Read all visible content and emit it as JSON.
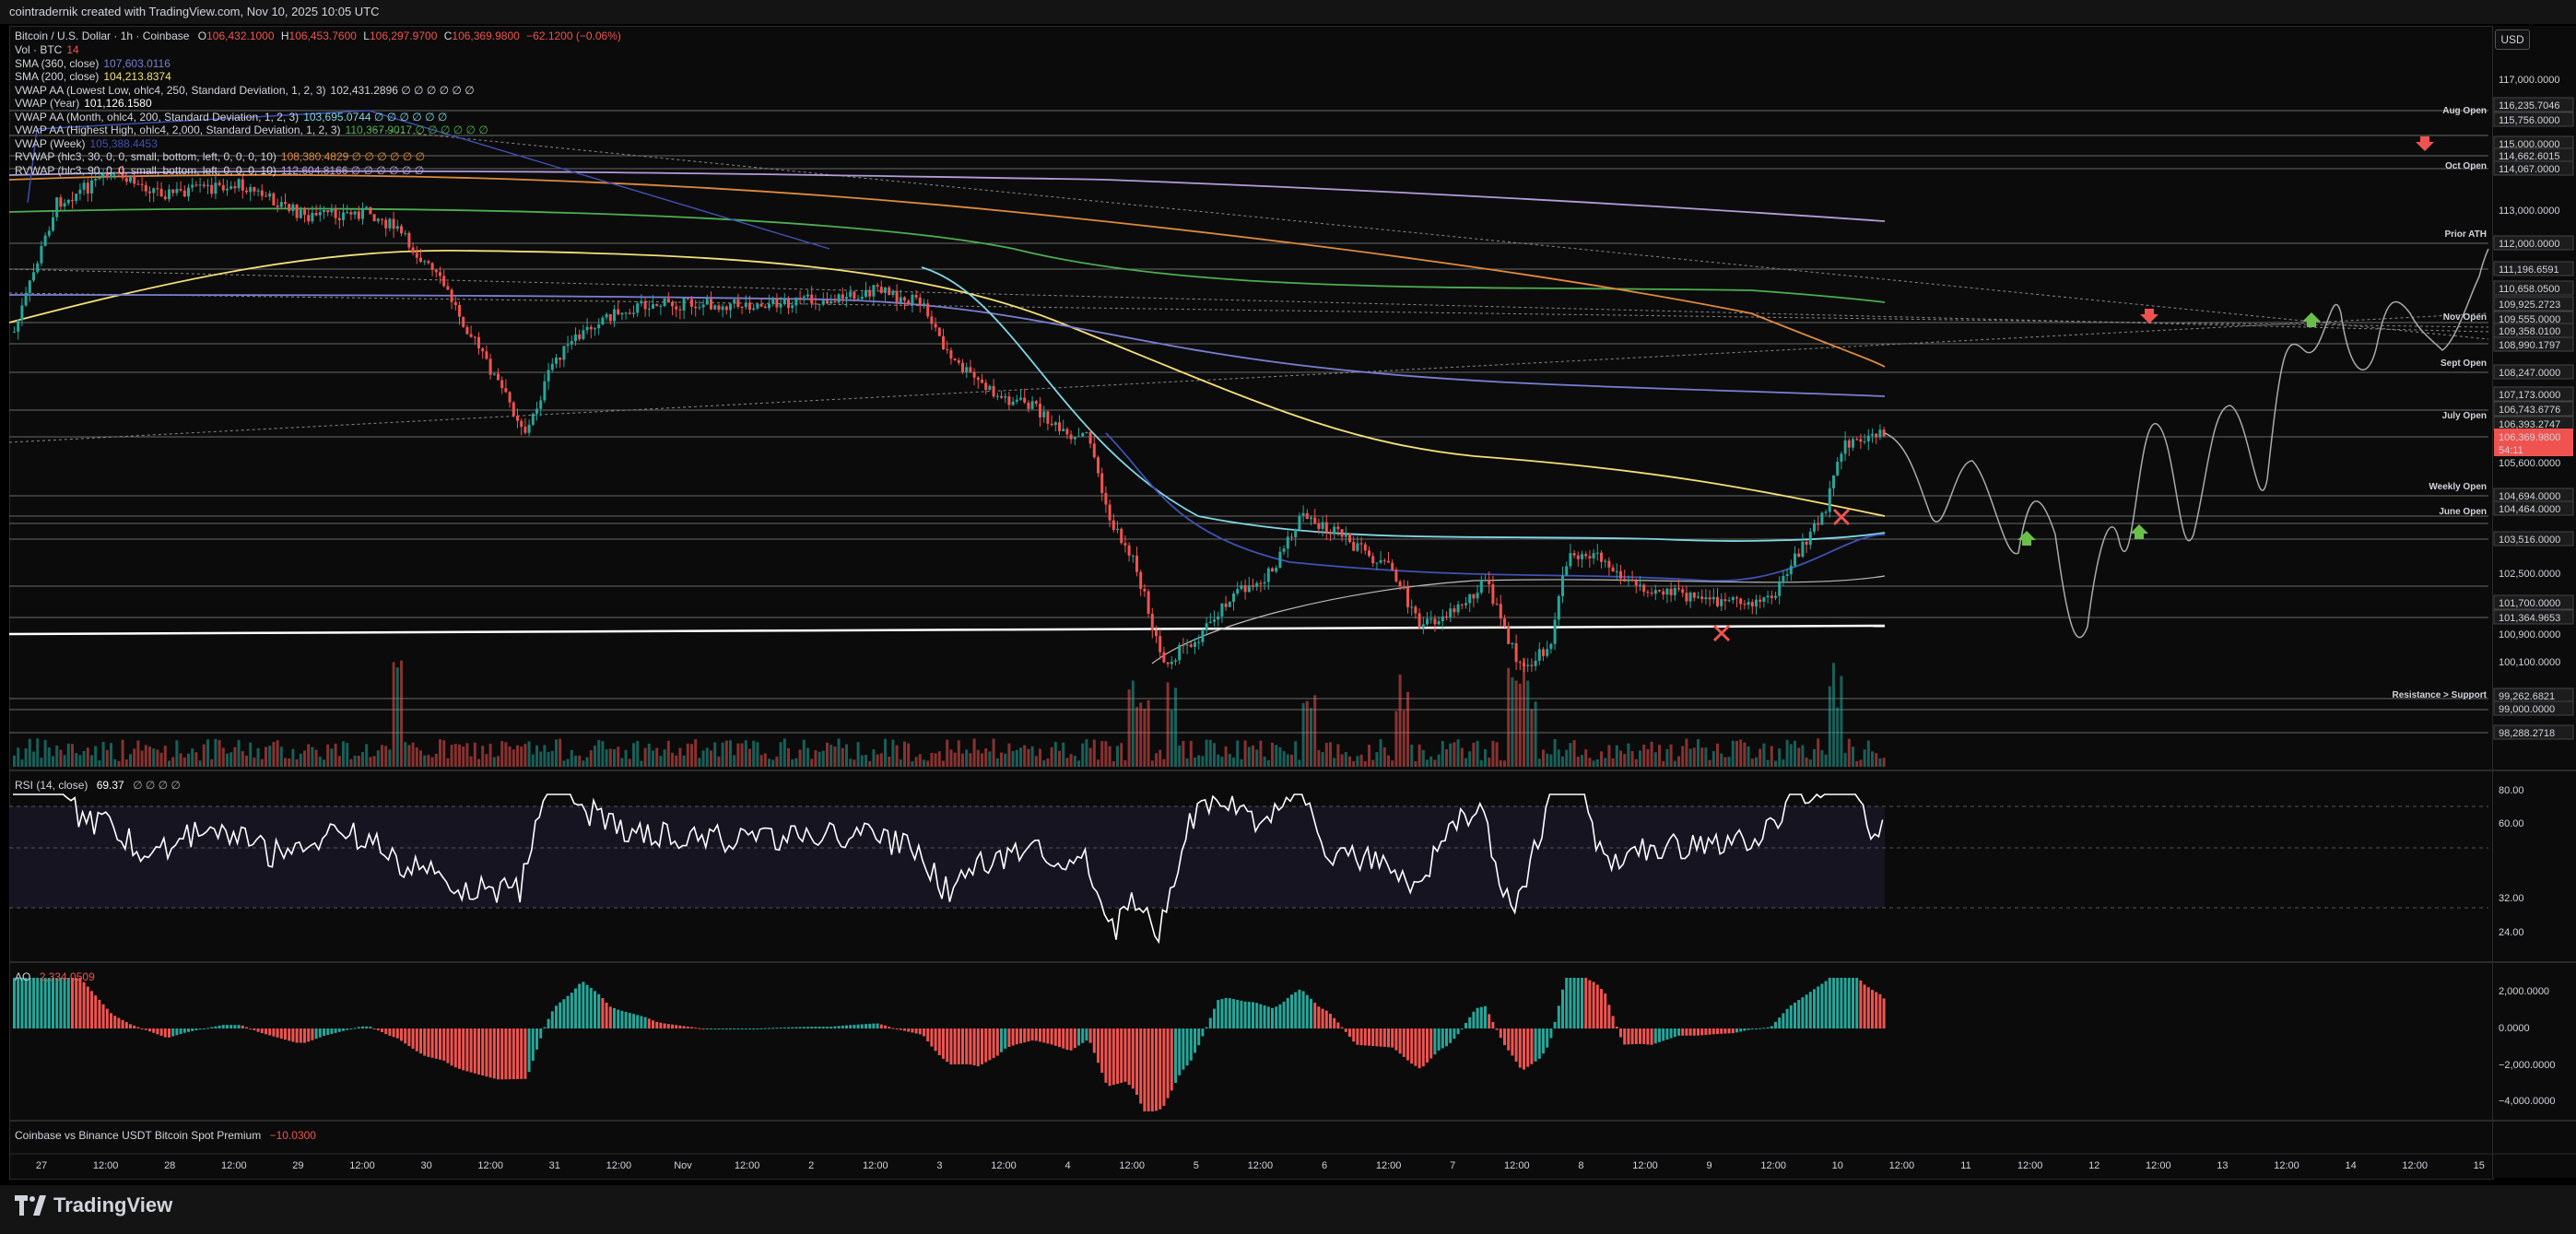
{
  "header": {
    "text": "cointradernik created with TradingView.com, Nov 10, 2025 10:05 UTC"
  },
  "currency_button": "USD",
  "symbol_legend": {
    "name": "Bitcoin / U.S. Dollar · 1h · Coinbase",
    "o_label": "O",
    "o": "106,432.1000",
    "h_label": "H",
    "h": "106,453.7600",
    "l_label": "L",
    "l": "106,297.9700",
    "c_label": "C",
    "c": "106,369.9800",
    "change": "−62.1200 (−0.06%)"
  },
  "indicator_legends": [
    {
      "label": "Vol · BTC",
      "value": "14",
      "color": "#ef5350"
    },
    {
      "label": "SMA (360, close)",
      "value": "107,603.0116",
      "color": "#7b7fd4"
    },
    {
      "label": "SMA (200, close)",
      "value": "104,213.8374",
      "color": "#f5e076"
    },
    {
      "label": "VWAP AA (Lowest Low, ohlc4, 250, Standard Deviation, 1, 2, 3)",
      "value": "102,431.2896  ∅ ∅ ∅ ∅ ∅ ∅",
      "color": "#d1d4dc"
    },
    {
      "label": "VWAP (Year)",
      "value": "101,126.1580",
      "color": "#ffffff"
    },
    {
      "label": "VWAP AA (Month, ohlc4, 200, Standard Deviation, 1, 2, 3)",
      "value": "103,695.0744  ∅ ∅ ∅ ∅ ∅ ∅",
      "color": "#7fd8e6"
    },
    {
      "label": "VWAP AA (Highest High, ohlc4, 2,000, Standard Deviation, 1, 2, 3)",
      "value": "110,367.9017  ∅ ∅ ∅ ∅ ∅ ∅",
      "color": "#4caf50"
    },
    {
      "label": "VWAP (Week)",
      "value": "105,388.4453",
      "color": "#3f51b5"
    },
    {
      "label": "RVWAP (hlc3, 30, 0, 0, small, bottom, left, 0, 0, 0, 10)",
      "value": "108,380.4829  ∅ ∅ ∅ ∅ ∅ ∅",
      "color": "#e08a3c"
    },
    {
      "label": "RVWAP (hlc3, 90, 0, 0, small, bottom, left, 0, 0, 0, 10)",
      "value": "112,604.8166  ∅ ∅ ∅ ∅ ∅ ∅",
      "color": "#b39ddb"
    }
  ],
  "level_labels": [
    "Aug Open",
    "Oct Open",
    "Prior ATH",
    "Nov Open",
    "Sept Open",
    "July Open",
    "Weekly Open",
    "June Open",
    "Resistance > Support"
  ],
  "price_axis": [
    "117,000.0000",
    "116,235.7046",
    "115,756.0000",
    "115,000.0000",
    "114,662.6015",
    "114,067.0000",
    "113,000.0000",
    "112,000.0000",
    "111,196.6591",
    "110,658.0500",
    "109,925.2723",
    "109,555.0000",
    "109,358.0100",
    "108,990.1797",
    "108,247.0000",
    "107,173.0000",
    "106,743.6776",
    "106,393.2747",
    "106,369.9800",
    "54:11",
    "105,600.0000",
    "104,694.0000",
    "104,464.0000",
    "103,516.0000",
    "102,500.0000",
    "101,700.0000",
    "101,364.9653",
    "100,900.0000",
    "100,100.0000",
    "99,262.6821",
    "99,000.0000",
    "98,288.2718"
  ],
  "rsi": {
    "title": "RSI (14, close)",
    "value": "69.37",
    "extra": "∅ ∅ ∅ ∅",
    "axis": [
      "80.00",
      "60.00",
      "32.00",
      "24.00"
    ]
  },
  "ao": {
    "title": "AO",
    "value": "2,334.0509",
    "axis": [
      "2,000.0000",
      "0.0000",
      "−2,000.0000",
      "−4,000.0000"
    ]
  },
  "premium": {
    "title": "Coinbase vs Binance USDT Bitcoin Spot Premium",
    "value": "−10.0300"
  },
  "time_axis": [
    "27",
    "12:00",
    "28",
    "12:00",
    "29",
    "12:00",
    "30",
    "12:00",
    "31",
    "12:00",
    "Nov",
    "12:00",
    "2",
    "12:00",
    "3",
    "12:00",
    "4",
    "12:00",
    "5",
    "12:00",
    "6",
    "12:00",
    "7",
    "12:00",
    "8",
    "12:00",
    "9",
    "12:00",
    "10",
    "12:00",
    "11",
    "12:00",
    "12",
    "12:00",
    "13",
    "12:00",
    "14",
    "12:00",
    "15"
  ],
  "brand": "TradingView",
  "colors": {
    "up": "#26a69a",
    "down": "#ef5350",
    "bg": "#0b0b0b",
    "grid": "#2a2a2a"
  }
}
